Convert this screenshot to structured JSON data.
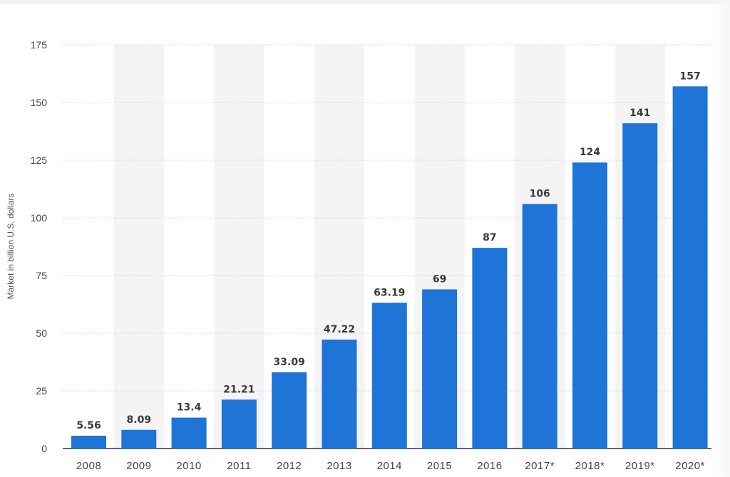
{
  "chart_data": {
    "type": "bar",
    "categories": [
      "2008",
      "2009",
      "2010",
      "2011",
      "2012",
      "2013",
      "2014",
      "2015",
      "2016",
      "2017*",
      "2018*",
      "2019*",
      "2020*"
    ],
    "values": [
      5.56,
      8.09,
      13.4,
      21.21,
      33.09,
      47.22,
      63.19,
      69,
      87,
      106,
      124,
      141,
      157
    ],
    "data_labels": [
      "5.56",
      "8.09",
      "13.4",
      "21.21",
      "33.09",
      "47.22",
      "63.19",
      "69",
      "87",
      "106",
      "124",
      "141",
      "157"
    ],
    "ylabel": "Market in billion U.S. dollars",
    "ylim": [
      0,
      175
    ],
    "yticks": [
      0,
      25,
      50,
      75,
      100,
      125,
      150,
      175
    ],
    "bar_color": "#1f74d8",
    "band_color": "#f4f4f4",
    "grid": true,
    "legend": "none"
  }
}
